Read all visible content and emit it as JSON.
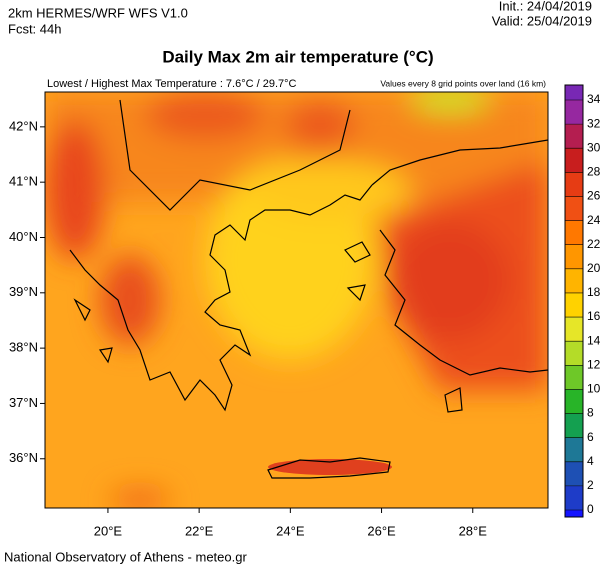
{
  "header": {
    "model": "2km HERMES/WRF WFS V1.0",
    "forecast": "Fcst: 44h",
    "init": "Init.: 24/04/2019",
    "valid": "Valid: 25/04/2019"
  },
  "title": "Daily Max 2m air temperature (°C)",
  "subtitle_left": "Lowest / Highest Max Temperature : 7.6°C / 29.7°C",
  "subtitle_right": "Values every 8 grid points over land (16 km)",
  "map": {
    "xlim": [
      18.62,
      29.65
    ],
    "ylim": [
      35.11,
      42.63
    ],
    "xticks": [
      {
        "value": 20,
        "label": "20°E"
      },
      {
        "value": 22,
        "label": "22°E"
      },
      {
        "value": 24,
        "label": "24°E"
      },
      {
        "value": 26,
        "label": "26°E"
      },
      {
        "value": 28,
        "label": "28°E"
      }
    ],
    "yticks": [
      {
        "value": 36,
        "label": "36°N"
      },
      {
        "value": 37,
        "label": "37°N"
      },
      {
        "value": 38,
        "label": "38°N"
      },
      {
        "value": 39,
        "label": "39°N"
      },
      {
        "value": 40,
        "label": "40°N"
      },
      {
        "value": 41,
        "label": "41°N"
      },
      {
        "value": 42,
        "label": "42°N"
      }
    ]
  },
  "colorbar": {
    "ticks": [
      0,
      2,
      4,
      6,
      8,
      10,
      12,
      14,
      16,
      18,
      20,
      22,
      24,
      26,
      28,
      30,
      32,
      34
    ],
    "colors": [
      "#1414ff",
      "#1e3cc8",
      "#1e50b4",
      "#1e7896",
      "#14a050",
      "#28b428",
      "#6ec828",
      "#b4dc28",
      "#e6e628",
      "#ffd200",
      "#ffb400",
      "#ff9600",
      "#ff7800",
      "#f05014",
      "#e63c14",
      "#c81e1e",
      "#b41e50",
      "#9628a0",
      "#7828b4"
    ]
  },
  "footer": "National Observatory of Athens - meteo.gr"
}
